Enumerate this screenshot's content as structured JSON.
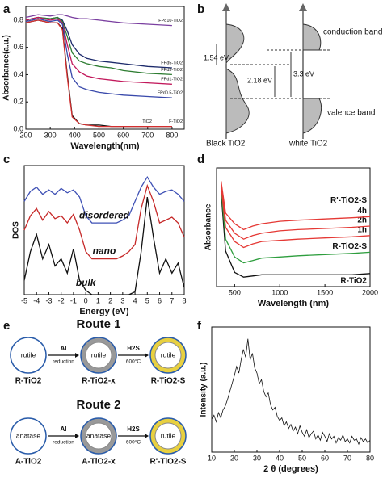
{
  "panel_labels": [
    "a",
    "b",
    "c",
    "d",
    "e",
    "f"
  ],
  "chart_data": [
    {
      "type": "line",
      "xlabel": "Wavelength(nm)",
      "ylabel": "Absorbance(a.u.)",
      "x": [
        200,
        250,
        300,
        330,
        350,
        370,
        390,
        420,
        450,
        500,
        550,
        600,
        700,
        800
      ],
      "xlim": [
        200,
        850
      ],
      "xticks": [
        200,
        300,
        400,
        500,
        600,
        700,
        800
      ],
      "ylim": [
        0,
        0.9
      ],
      "yticks": [
        {
          "value": 0,
          "label": "0.0"
        },
        0.2,
        0.4,
        0.6,
        0.8
      ],
      "series": [
        {
          "name": "FPd10-TiO2",
          "color": "#7a3fa0",
          "values": [
            0.82,
            0.84,
            0.83,
            0.84,
            0.84,
            0.83,
            0.82,
            0.81,
            0.81,
            0.8,
            0.79,
            0.78,
            0.77,
            0.76
          ]
        },
        {
          "name": "FPd5-TiO2",
          "color": "#1c2a6b",
          "values": [
            0.8,
            0.82,
            0.81,
            0.82,
            0.8,
            0.72,
            0.62,
            0.55,
            0.52,
            0.5,
            0.49,
            0.48,
            0.46,
            0.45
          ]
        },
        {
          "name": "FPd3-TiO2",
          "color": "#2e7d32",
          "values": [
            0.8,
            0.82,
            0.81,
            0.82,
            0.79,
            0.68,
            0.56,
            0.5,
            0.48,
            0.46,
            0.45,
            0.43,
            0.41,
            0.4
          ]
        },
        {
          "name": "FPd1-TiO2",
          "color": "#c2185b",
          "values": [
            0.8,
            0.82,
            0.8,
            0.81,
            0.78,
            0.62,
            0.48,
            0.42,
            0.39,
            0.37,
            0.36,
            0.35,
            0.34,
            0.33
          ]
        },
        {
          "name": "FPd0.5-TiO2",
          "color": "#3949ab",
          "values": [
            0.79,
            0.81,
            0.79,
            0.8,
            0.77,
            0.55,
            0.38,
            0.31,
            0.29,
            0.27,
            0.26,
            0.25,
            0.24,
            0.23
          ]
        },
        {
          "name": "TiO2",
          "color": "#111111",
          "values": [
            0.78,
            0.8,
            0.78,
            0.78,
            0.74,
            0.4,
            0.1,
            0.04,
            0.03,
            0.03,
            0.02,
            0.02,
            0.02,
            0.02
          ]
        },
        {
          "name": "F-TiO2",
          "color": "#d32f2f",
          "values": [
            0.78,
            0.8,
            0.78,
            0.78,
            0.73,
            0.38,
            0.09,
            0.04,
            0.03,
            0.02,
            0.02,
            0.02,
            0.02,
            0.02
          ]
        }
      ]
    },
    {
      "type": "line",
      "xlabel": "Energy (eV)",
      "ylabel": "DOS",
      "x": [
        -5,
        -4.5,
        -4,
        -3.5,
        -3,
        -2.5,
        -2,
        -1.5,
        -1,
        -0.5,
        0,
        0.5,
        1,
        1.5,
        2,
        2.5,
        3,
        3.5,
        4,
        4.5,
        5,
        5.5,
        6,
        6.5,
        7,
        7.5,
        8
      ],
      "xlim": [
        -5,
        8
      ],
      "xticks": [
        -5,
        -4,
        -3,
        -2,
        -1,
        0,
        1,
        2,
        3,
        4,
        5,
        6,
        7,
        8
      ],
      "ylim": [
        0,
        9
      ],
      "series": [
        {
          "name": "bulk",
          "color": "#111111",
          "values": [
            1,
            3,
            4.2,
            2.5,
            3.5,
            2,
            2.5,
            1.5,
            3.2,
            1,
            0.3,
            0,
            0,
            0,
            0,
            0,
            0,
            0,
            0.2,
            3,
            6.8,
            4,
            1.5,
            2.5,
            1.5,
            2.2,
            0.5
          ]
        },
        {
          "name": "nano",
          "color": "#c62828",
          "values": [
            4.5,
            5.5,
            6,
            5.2,
            5.8,
            5.3,
            5.5,
            5,
            5.6,
            4.5,
            3,
            2.5,
            2.5,
            2.5,
            2.5,
            2.5,
            2.7,
            3,
            3.5,
            6,
            7.6,
            6.5,
            5,
            5.2,
            5.4,
            5,
            4
          ]
        },
        {
          "name": "disordered",
          "color": "#3f51b5",
          "values": [
            6.5,
            7.2,
            7.5,
            7,
            7.3,
            7,
            7.4,
            7.1,
            7.3,
            6.8,
            5.5,
            5,
            5,
            5,
            5,
            5,
            5.2,
            5.5,
            6.5,
            7.5,
            8.2,
            7.5,
            7,
            7.2,
            7.3,
            7,
            6.5
          ]
        }
      ]
    },
    {
      "type": "line",
      "xlabel": "Wavelength (nm)",
      "ylabel": "Absorbance",
      "x": [
        350,
        400,
        500,
        600,
        700,
        800,
        1000,
        1200,
        1500,
        1800,
        2000
      ],
      "xlim": [
        300,
        2000
      ],
      "xticks": [
        500,
        1000,
        1500,
        2000
      ],
      "ylim": [
        0,
        10
      ],
      "annotations": [
        "R'-TiO2-S"
      ],
      "series": [
        {
          "name": "R-TiO2",
          "color": "#111111",
          "values": [
            8,
            3,
            1.2,
            0.8,
            0.9,
            1,
            1,
            1,
            1,
            1,
            1.1
          ]
        },
        {
          "name": "R-TiO2-S",
          "color": "#2e9e3e",
          "values": [
            8.3,
            4,
            2.5,
            2,
            2.2,
            2.4,
            2.5,
            2.6,
            2.7,
            2.8,
            2.9
          ]
        },
        {
          "name": "1h",
          "color": "#e53935",
          "values": [
            8.5,
            5,
            3.8,
            3.3,
            3.6,
            3.8,
            3.9,
            4,
            4.1,
            4.2,
            4.3
          ]
        },
        {
          "name": "2h",
          "color": "#e53935",
          "values": [
            8.7,
            5.6,
            4.5,
            4,
            4.3,
            4.5,
            4.7,
            4.8,
            4.9,
            5,
            5.1
          ]
        },
        {
          "name": "4h",
          "color": "#e53935",
          "values": [
            8.9,
            6.2,
            5.3,
            4.8,
            5.1,
            5.3,
            5.5,
            5.6,
            5.7,
            5.8,
            5.9
          ]
        }
      ]
    },
    {
      "type": "line",
      "xlabel": "2 θ (degrees)",
      "ylabel": "Intensity (a.u.)",
      "x": [
        10,
        11,
        12,
        13,
        14,
        15,
        16,
        17,
        18,
        19,
        20,
        21,
        22,
        23,
        24,
        25,
        26,
        27,
        28,
        29,
        30,
        31,
        32,
        33,
        34,
        35,
        36,
        37,
        38,
        39,
        40,
        41,
        42,
        43,
        44,
        45,
        46,
        47,
        48,
        49,
        50,
        51,
        52,
        53,
        54,
        55,
        56,
        57,
        58,
        59,
        60,
        61,
        62,
        63,
        64,
        65,
        66,
        67,
        68,
        69,
        70,
        71,
        72,
        73,
        74,
        75,
        76,
        77,
        78,
        79,
        80
      ],
      "xlim": [
        10,
        80
      ],
      "xticks": [
        10,
        20,
        30,
        40,
        50,
        60,
        70,
        80
      ],
      "ylim": [
        0,
        9.5
      ],
      "series": [
        {
          "color": "#111111",
          "values": [
            2.5,
            2.8,
            2.3,
            3,
            2.6,
            3.2,
            3.5,
            4,
            4.6,
            5.2,
            5.8,
            6.5,
            6,
            7,
            7.8,
            7.2,
            8.6,
            7,
            7.5,
            6.4,
            6,
            5.2,
            5.5,
            4.6,
            4.2,
            4.5,
            3.6,
            3.2,
            3.4,
            2.7,
            2.4,
            2.6,
            2,
            2.3,
            1.8,
            2.1,
            1.6,
            1.9,
            1.4,
            2,
            1.5,
            1.2,
            1.7,
            1.1,
            1.4,
            1.6,
            1,
            1.3,
            0.9,
            1.5,
            1.2,
            0.8,
            1.4,
            1,
            1.2,
            0.7,
            1.1,
            0.9,
            1.3,
            0.8,
            1,
            0.7,
            1.2,
            0.9,
            1,
            0.6,
            1.1,
            0.8,
            1,
            0.7,
            0.9
          ]
        }
      ]
    }
  ],
  "band_diagram": {
    "gap_black": "1.54 eV",
    "gap_mid": "2.18 eV",
    "gap_white": "3.3 eV",
    "conduction": "conduction band",
    "valence": "valence band",
    "black_label": "Black TiO2",
    "white_label": "white TiO2"
  },
  "routes": [
    {
      "title": "Route 1",
      "steps": [
        {
          "inner": "rutile",
          "label": "R-TiO2"
        },
        {
          "inner": "rutile",
          "label": "R-TiO2-x"
        },
        {
          "inner": "rutile",
          "label": "R-TiO2-S"
        }
      ],
      "arrows": [
        {
          "top": "Al",
          "bottom": "reduction"
        },
        {
          "top": "H2S",
          "bottom": "600°C"
        }
      ]
    },
    {
      "title": "Route 2",
      "steps": [
        {
          "inner": "anatase",
          "label": "A-TiO2"
        },
        {
          "inner": "anatase",
          "label": "A-TiO2-x"
        },
        {
          "inner": "rutile",
          "label": "R'-TiO2-S"
        }
      ],
      "arrows": [
        {
          "top": "Al",
          "bottom": "reduction"
        },
        {
          "top": "H2S",
          "bottom": "600°C"
        }
      ]
    }
  ]
}
